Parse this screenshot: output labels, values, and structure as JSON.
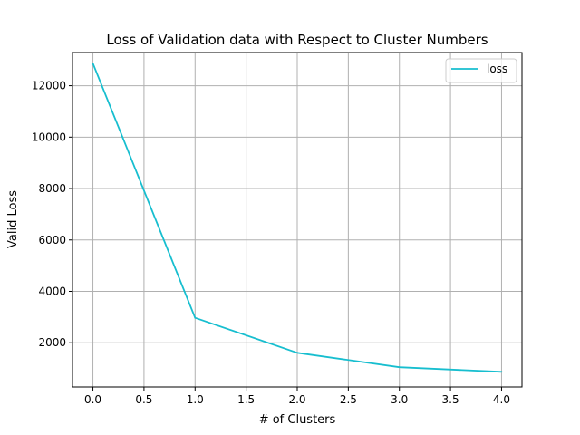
{
  "chart_data": {
    "type": "line",
    "title": "Loss of Validation data with Respect to Cluster Numbers",
    "xlabel": "# of Clusters",
    "ylabel": "Valid Loss",
    "xlim": [
      -0.2,
      4.2
    ],
    "ylim": [
      280,
      13290
    ],
    "xticks": [
      0.0,
      0.5,
      1.0,
      1.5,
      2.0,
      2.5,
      3.0,
      3.5,
      4.0
    ],
    "xtick_labels": [
      "0.0",
      "0.5",
      "1.0",
      "1.5",
      "2.0",
      "2.5",
      "3.0",
      "3.5",
      "4.0"
    ],
    "yticks": [
      2000,
      4000,
      6000,
      8000,
      10000,
      12000
    ],
    "ytick_labels": [
      "2000",
      "4000",
      "6000",
      "8000",
      "10000",
      "12000"
    ],
    "grid": true,
    "legend_position": "top-right",
    "series": [
      {
        "name": "loss",
        "color": "#17becf",
        "x": [
          0,
          1,
          2,
          3,
          4
        ],
        "y": [
          12870,
          2970,
          1610,
          1050,
          870
        ]
      }
    ]
  }
}
